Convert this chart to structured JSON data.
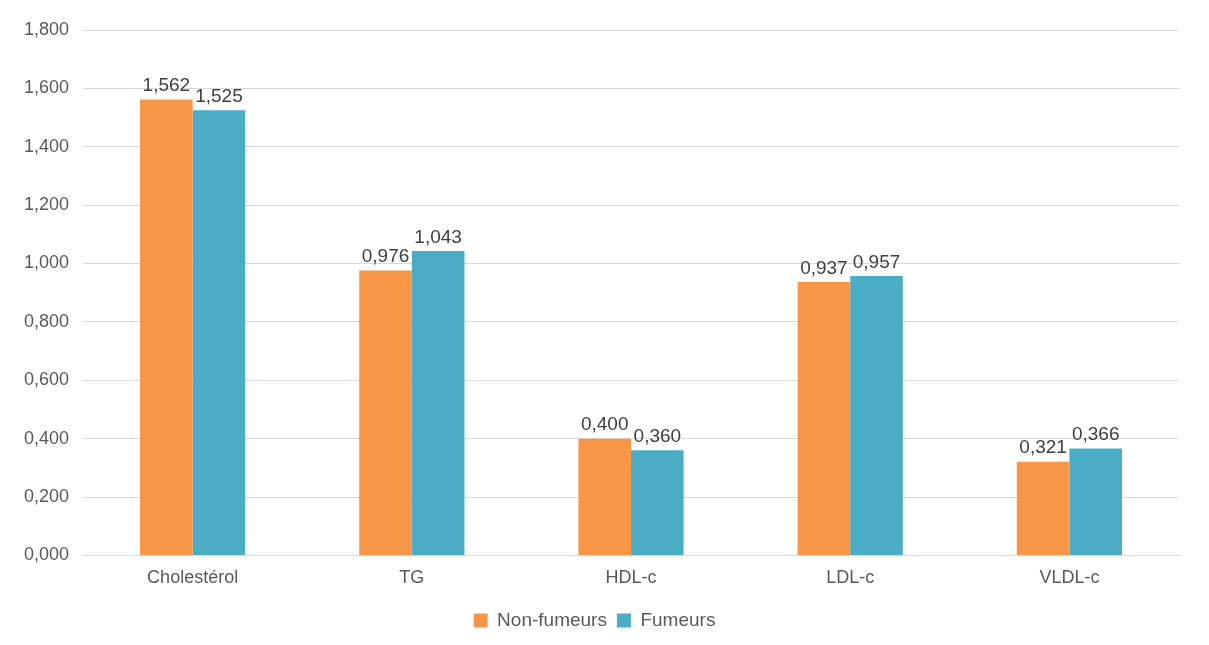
{
  "chart_data": {
    "type": "bar",
    "categories": [
      "Cholestérol",
      "TG",
      "HDL-c",
      "LDL-c",
      "VLDL-c"
    ],
    "series": [
      {
        "name": "Non-fumeurs",
        "color": "#f79646",
        "values": [
          1.562,
          0.976,
          0.4,
          0.937,
          0.321
        ],
        "value_labels": [
          "1,562",
          "0,976",
          "0,400",
          "0,937",
          "0,321"
        ]
      },
      {
        "name": "Fumeurs",
        "color": "#4bacc6",
        "values": [
          1.525,
          1.043,
          0.36,
          0.957,
          0.366
        ],
        "value_labels": [
          "1,525",
          "1,043",
          "0,360",
          "0,957",
          "0,366"
        ]
      }
    ],
    "ylim": [
      0,
      1.8
    ],
    "yticks": [
      {
        "value": 0,
        "label": "0,000"
      },
      {
        "value": 0.2,
        "label": "0,200"
      },
      {
        "value": 0.4,
        "label": "0,400"
      },
      {
        "value": 0.6,
        "label": "0,600"
      },
      {
        "value": 0.8,
        "label": "0,800"
      },
      {
        "value": 1,
        "label": "1,000"
      },
      {
        "value": 1.2,
        "label": "1,200"
      },
      {
        "value": 1.4,
        "label": "1,400"
      },
      {
        "value": 1.6,
        "label": "1,600"
      },
      {
        "value": 1.8,
        "label": "1,800"
      }
    ],
    "grid": "y",
    "legend": "bottom"
  }
}
